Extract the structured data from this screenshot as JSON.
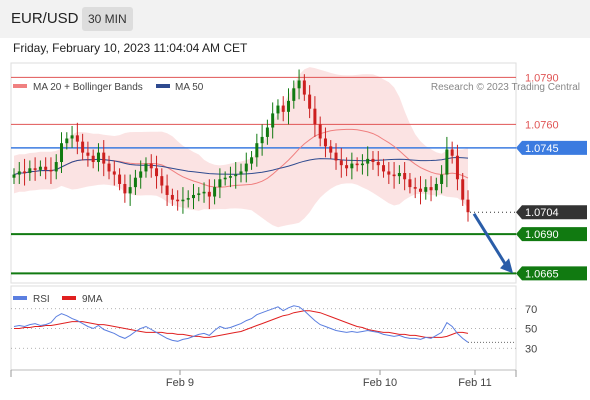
{
  "header": {
    "symbol": "EUR/USD",
    "timeframe": "30 MIN"
  },
  "datetime": "Friday, February 10, 2023 11:04:04 AM CET",
  "colors": {
    "ma20": "#f08080",
    "ma50": "#2e4a8f",
    "resistance": "#e05555",
    "pivot": "#3b7be0",
    "support": "#117a11",
    "current": "#333333",
    "candle_up": "#117a11",
    "candle_down": "#cc1f1f",
    "bands": "#fadede",
    "rsi": "#5b7fe0",
    "rsi_ma": "#e02020",
    "arrow": "#2a5da8"
  },
  "chart_data": [
    {
      "type": "candlestick",
      "legend": [
        {
          "name": "MA 20 + Bollinger Bands",
          "color": "#f08080"
        },
        {
          "name": "MA 50",
          "color": "#2e4a8f"
        }
      ],
      "legend_position": "top-left",
      "attribution": "Research © 2023 Trading Central",
      "x_ticks": [
        "Feb 9",
        "Feb 10",
        "Feb 11"
      ],
      "ylim": [
        1.06595,
        1.07985
      ],
      "levels": [
        {
          "label": "1.0790",
          "value": 1.079,
          "kind": "resistance"
        },
        {
          "label": "1.0760",
          "value": 1.076,
          "kind": "resistance"
        },
        {
          "label": "1.0745",
          "value": 1.0745,
          "kind": "pivot"
        },
        {
          "label": "1.0704",
          "value": 1.0704,
          "kind": "current"
        },
        {
          "label": "1.0690",
          "value": 1.069,
          "kind": "support"
        },
        {
          "label": "1.0665",
          "value": 1.0665,
          "kind": "support"
        }
      ],
      "close": [
        1.0728,
        1.073,
        1.0729,
        1.0732,
        1.0731,
        1.0733,
        1.0731,
        1.073,
        1.0736,
        1.0748,
        1.0751,
        1.0753,
        1.0749,
        1.0742,
        1.074,
        1.0736,
        1.0742,
        1.0735,
        1.073,
        1.0728,
        1.0722,
        1.0716,
        1.072,
        1.0726,
        1.073,
        1.0735,
        1.0732,
        1.0727,
        1.0721,
        1.0715,
        1.0712,
        1.0711,
        1.0712,
        1.0713,
        1.0715,
        1.0716,
        1.0717,
        1.0714,
        1.072,
        1.0725,
        1.0726,
        1.0727,
        1.0728,
        1.073,
        1.0735,
        1.0739,
        1.0748,
        1.0752,
        1.0758,
        1.0767,
        1.0772,
        1.0768,
        1.0775,
        1.0783,
        1.0788,
        1.0779,
        1.077,
        1.076,
        1.0751,
        1.0746,
        1.0742,
        1.0737,
        1.0734,
        1.0732,
        1.0735,
        1.0734,
        1.0735,
        1.0738,
        1.0736,
        1.0734,
        1.073,
        1.0728,
        1.0727,
        1.0729,
        1.0725,
        1.072,
        1.0719,
        1.0717,
        1.072,
        1.0718,
        1.0722,
        1.0728,
        1.0744,
        1.074,
        1.0725,
        1.0712,
        1.0704
      ],
      "rsi": [
        52,
        53,
        52,
        54,
        55,
        53,
        54,
        56,
        62,
        65,
        63,
        60,
        58,
        55,
        52,
        50,
        53,
        49,
        47,
        45,
        42,
        40,
        43,
        47,
        50,
        52,
        49,
        46,
        43,
        40,
        38,
        37,
        39,
        40,
        42,
        44,
        45,
        43,
        48,
        52,
        50,
        51,
        53,
        55,
        58,
        60,
        64,
        66,
        68,
        70,
        72,
        68,
        71,
        73,
        72,
        68,
        63,
        58,
        54,
        52,
        50,
        48,
        47,
        46,
        47,
        46,
        47,
        48,
        47,
        46,
        44,
        43,
        42,
        43,
        41,
        40,
        40,
        39,
        41,
        40,
        43,
        46,
        56,
        52,
        45,
        40,
        36
      ],
      "rsi_ma": [
        50,
        50,
        51,
        51,
        52,
        52,
        53,
        53,
        54,
        55,
        56,
        57,
        57,
        57,
        56,
        55,
        54,
        54,
        53,
        52,
        51,
        50,
        49,
        48,
        47,
        46,
        46,
        46,
        46,
        45,
        45,
        44,
        44,
        43,
        42,
        42,
        41,
        41,
        42,
        43,
        44,
        45,
        46,
        47,
        49,
        51,
        53,
        55,
        57,
        59,
        61,
        63,
        64,
        66,
        67,
        68,
        68,
        67,
        66,
        64,
        62,
        60,
        58,
        56,
        54,
        52,
        51,
        49,
        48,
        47,
        46,
        46,
        45,
        44,
        44,
        43,
        43,
        42,
        41,
        41,
        41,
        41,
        42,
        44,
        46,
        46,
        45
      ]
    },
    {
      "type": "line",
      "legend": [
        {
          "name": "RSI",
          "color": "#5b7fe0"
        },
        {
          "name": "9MA",
          "color": "#e02020"
        }
      ],
      "y_ticks": [
        "70",
        "50",
        "30"
      ],
      "ylim": [
        10,
        90
      ]
    }
  ]
}
